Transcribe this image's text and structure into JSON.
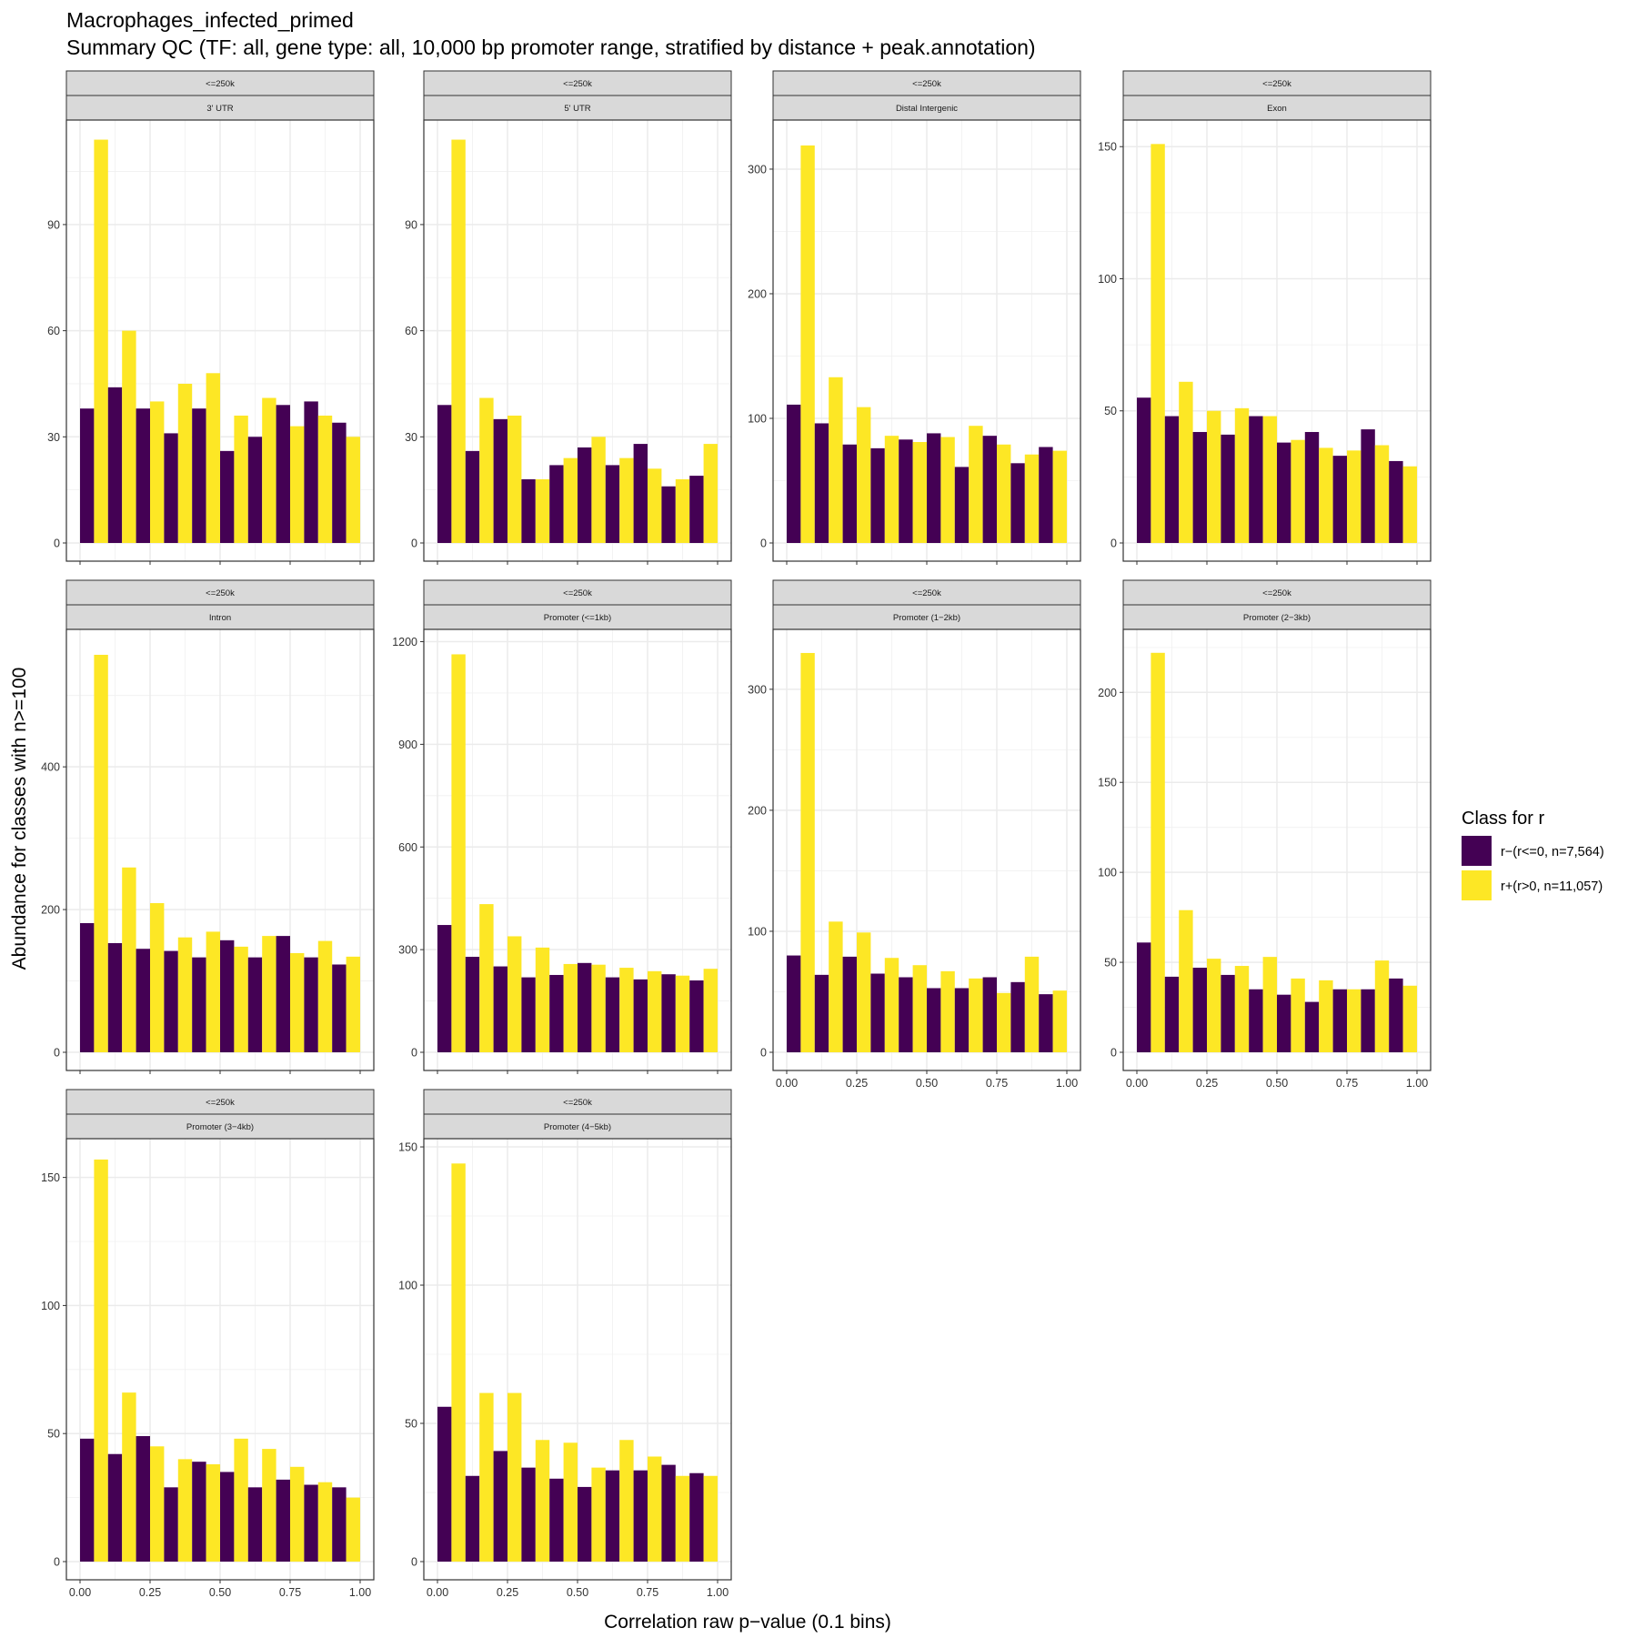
{
  "figure": {
    "title": "Macrophages_infected_primed",
    "subtitle": "Summary QC (TF: all, gene type: all, 10,000 bp promoter range, stratified by distance + peak.annotation)",
    "xlabel": "Correlation raw p−value (0.1 bins)",
    "ylabel": "Abundance for classes with n>=100"
  },
  "legend": {
    "title": "Class for r",
    "placement": "right",
    "items": [
      {
        "label": "r−(r<=0, n=7,564)",
        "color": "#440154"
      },
      {
        "label": "r+(r>0, n=11,057)",
        "color": "#FDE725"
      }
    ]
  },
  "chart_data": {
    "type": "bar",
    "layout": "faceted 4x3 grid, free y scales, x ticks shown on bottom panels only",
    "x_ticks": [
      "0.00",
      "0.25",
      "0.50",
      "0.75",
      "1.00"
    ],
    "xlim": [
      0,
      1
    ],
    "x": [
      0.05,
      0.15,
      0.25,
      0.35,
      0.45,
      0.55,
      0.65,
      0.75,
      0.85,
      0.95
    ],
    "grid": true,
    "series_names": [
      "r−(r<=0, n=7,564)",
      "r+(r>0, n=11,057)"
    ],
    "series_colors": [
      "#440154",
      "#FDE725"
    ],
    "panels": [
      {
        "distance": "<=250k",
        "annotation": "3' UTR",
        "ylim": [
          0,
          118
        ],
        "yticks": [
          0,
          30,
          60,
          90
        ],
        "neg": [
          38,
          44,
          38,
          31,
          38,
          26,
          30,
          39,
          40,
          34
        ],
        "pos": [
          114,
          60,
          40,
          45,
          48,
          36,
          41,
          33,
          36,
          30
        ]
      },
      {
        "distance": "<=250k",
        "annotation": "5' UTR",
        "ylim": [
          0,
          118
        ],
        "yticks": [
          0,
          30,
          60,
          90
        ],
        "neg": [
          39,
          26,
          35,
          18,
          22,
          27,
          22,
          28,
          16,
          19
        ],
        "pos": [
          114,
          41,
          36,
          18,
          24,
          30,
          24,
          21,
          18,
          28
        ]
      },
      {
        "distance": "<=250k",
        "annotation": "Distal Intergenic",
        "ylim": [
          0,
          335
        ],
        "yticks": [
          0,
          100,
          200,
          300
        ],
        "neg": [
          111,
          96,
          79,
          76,
          83,
          88,
          61,
          86,
          64,
          77
        ],
        "pos": [
          319,
          133,
          109,
          86,
          81,
          85,
          94,
          79,
          71,
          74
        ]
      },
      {
        "distance": "<=250k",
        "annotation": "Exon",
        "ylim": [
          0,
          158
        ],
        "yticks": [
          0,
          50,
          100,
          150
        ],
        "neg": [
          55,
          48,
          42,
          41,
          48,
          38,
          42,
          33,
          43,
          31
        ],
        "pos": [
          151,
          61,
          50,
          51,
          48,
          39,
          36,
          35,
          37,
          29
        ]
      },
      {
        "distance": "<=250k",
        "annotation": "Intron",
        "ylim": [
          0,
          585
        ],
        "yticks": [
          0,
          200,
          400
        ],
        "neg": [
          181,
          153,
          145,
          142,
          133,
          157,
          133,
          163,
          133,
          123
        ],
        "pos": [
          557,
          259,
          209,
          161,
          169,
          148,
          163,
          139,
          156,
          134
        ]
      },
      {
        "distance": "<=250k",
        "annotation": "Promoter (<=1kb)",
        "ylim": [
          0,
          1220
        ],
        "yticks": [
          0,
          300,
          600,
          900,
          1200
        ],
        "neg": [
          372,
          279,
          251,
          219,
          226,
          261,
          219,
          213,
          228,
          210
        ],
        "pos": [
          1163,
          433,
          339,
          306,
          258,
          256,
          247,
          237,
          224,
          244
        ]
      },
      {
        "distance": "<=250k",
        "annotation": "Promoter (1−2kb)",
        "ylim": [
          0,
          345
        ],
        "yticks": [
          0,
          100,
          200,
          300
        ],
        "neg": [
          80,
          64,
          79,
          65,
          62,
          53,
          53,
          62,
          58,
          48
        ],
        "pos": [
          330,
          108,
          99,
          78,
          72,
          67,
          61,
          49,
          79,
          51
        ]
      },
      {
        "distance": "<=250k",
        "annotation": "Promoter (2−3kb)",
        "ylim": [
          0,
          232
        ],
        "yticks": [
          0,
          50,
          100,
          150,
          200
        ],
        "neg": [
          61,
          42,
          47,
          43,
          35,
          32,
          28,
          35,
          35,
          41
        ],
        "pos": [
          222,
          79,
          52,
          48,
          53,
          41,
          40,
          35,
          51,
          37
        ]
      },
      {
        "distance": "<=250k",
        "annotation": "Promoter (3−4kb)",
        "ylim": [
          0,
          163
        ],
        "yticks": [
          0,
          50,
          100,
          150
        ],
        "neg": [
          48,
          42,
          49,
          29,
          39,
          35,
          29,
          32,
          30,
          29
        ],
        "pos": [
          157,
          66,
          45,
          40,
          38,
          48,
          44,
          37,
          31,
          25
        ]
      },
      {
        "distance": "<=250k",
        "annotation": "Promoter (4−5kb)",
        "ylim": [
          0,
          151
        ],
        "yticks": [
          0,
          50,
          100,
          150
        ],
        "neg": [
          56,
          31,
          40,
          34,
          30,
          27,
          33,
          33,
          35,
          32
        ],
        "pos": [
          144,
          61,
          61,
          44,
          43,
          34,
          44,
          38,
          31,
          31
        ]
      }
    ]
  }
}
